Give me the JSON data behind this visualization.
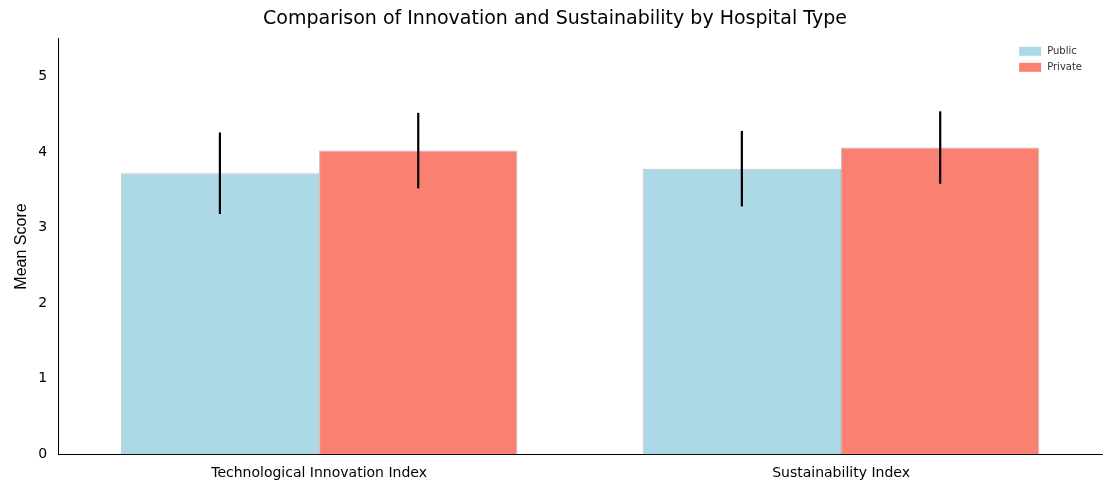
{
  "chart_data": {
    "type": "bar",
    "title": "Comparison of Innovation and Sustainability by Hospital Type",
    "ylabel": "Mean Score",
    "categories": [
      "Technological Innovation Index",
      "Sustainability Index"
    ],
    "series": [
      {
        "name": "Public",
        "color": "#add8e6",
        "values": [
          3.72,
          3.78
        ],
        "errors": [
          0.54,
          0.5
        ]
      },
      {
        "name": "Private",
        "color": "#fa8072",
        "values": [
          4.02,
          4.06
        ],
        "errors": [
          0.5,
          0.48
        ]
      }
    ],
    "ylim": [
      0,
      5.5
    ],
    "yticks": [
      0,
      1,
      2,
      3,
      4,
      5
    ],
    "grid": false,
    "legend": "top right"
  }
}
